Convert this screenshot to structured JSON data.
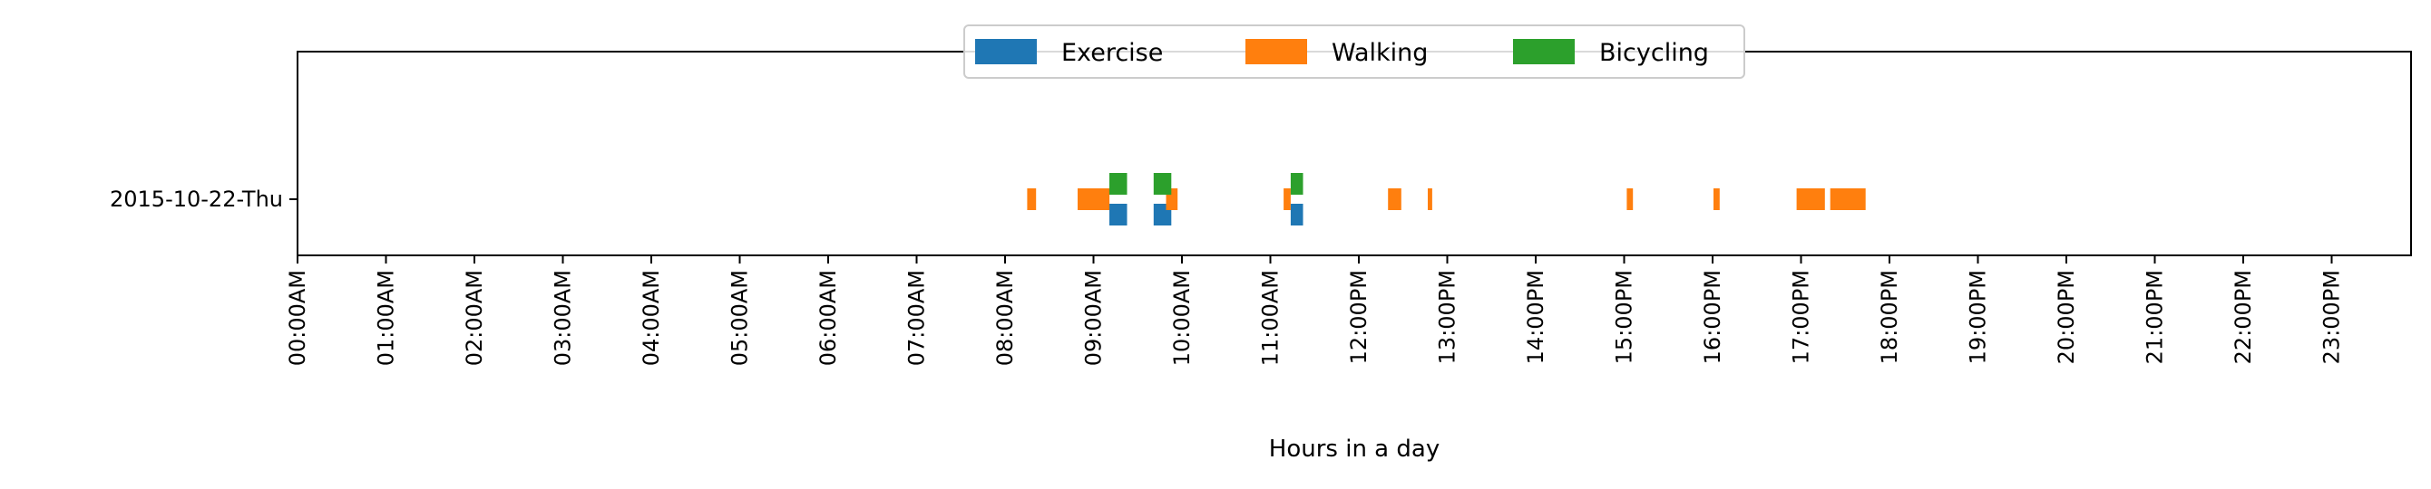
{
  "chart_data": {
    "type": "bar",
    "orientation": "horizontal-timeline",
    "title": "",
    "xlabel": "Hours in a day",
    "ylabel": "",
    "xlim": [
      0,
      24
    ],
    "categories": [
      "2015-10-22-Thu"
    ],
    "x_ticks": [
      {
        "hour": 0,
        "label": "00:00AM"
      },
      {
        "hour": 1,
        "label": "01:00AM"
      },
      {
        "hour": 2,
        "label": "02:00AM"
      },
      {
        "hour": 3,
        "label": "03:00AM"
      },
      {
        "hour": 4,
        "label": "04:00AM"
      },
      {
        "hour": 5,
        "label": "05:00AM"
      },
      {
        "hour": 6,
        "label": "06:00AM"
      },
      {
        "hour": 7,
        "label": "07:00AM"
      },
      {
        "hour": 8,
        "label": "08:00AM"
      },
      {
        "hour": 9,
        "label": "09:00AM"
      },
      {
        "hour": 10,
        "label": "10:00AM"
      },
      {
        "hour": 11,
        "label": "11:00AM"
      },
      {
        "hour": 12,
        "label": "12:00PM"
      },
      {
        "hour": 13,
        "label": "13:00PM"
      },
      {
        "hour": 14,
        "label": "14:00PM"
      },
      {
        "hour": 15,
        "label": "15:00PM"
      },
      {
        "hour": 16,
        "label": "16:00PM"
      },
      {
        "hour": 17,
        "label": "17:00PM"
      },
      {
        "hour": 18,
        "label": "18:00PM"
      },
      {
        "hour": 19,
        "label": "19:00PM"
      },
      {
        "hour": 20,
        "label": "20:00PM"
      },
      {
        "hour": 21,
        "label": "21:00PM"
      },
      {
        "hour": 22,
        "label": "22:00PM"
      },
      {
        "hour": 23,
        "label": "23:00PM"
      }
    ],
    "grid": false,
    "legend": {
      "placement": "top-center",
      "columns": 3
    },
    "series": [
      {
        "name": "Exercise",
        "color": "#1f77b4",
        "lane": "below",
        "intervals": [
          [
            9.18,
            9.38
          ],
          [
            9.68,
            9.88
          ],
          [
            11.23,
            11.37
          ]
        ]
      },
      {
        "name": "Walking",
        "color": "#ff7f0e",
        "lane": "center",
        "intervals": [
          [
            8.25,
            8.35
          ],
          [
            8.82,
            9.18
          ],
          [
            9.82,
            9.95
          ],
          [
            11.15,
            11.23
          ],
          [
            12.33,
            12.48
          ],
          [
            12.78,
            12.83
          ],
          [
            15.03,
            15.1
          ],
          [
            16.01,
            16.08
          ],
          [
            16.95,
            17.27
          ],
          [
            17.33,
            17.73
          ]
        ]
      },
      {
        "name": "Bicycling",
        "color": "#2ca02c",
        "lane": "above",
        "intervals": [
          [
            9.18,
            9.38
          ],
          [
            9.68,
            9.88
          ],
          [
            11.23,
            11.37
          ]
        ]
      }
    ]
  }
}
